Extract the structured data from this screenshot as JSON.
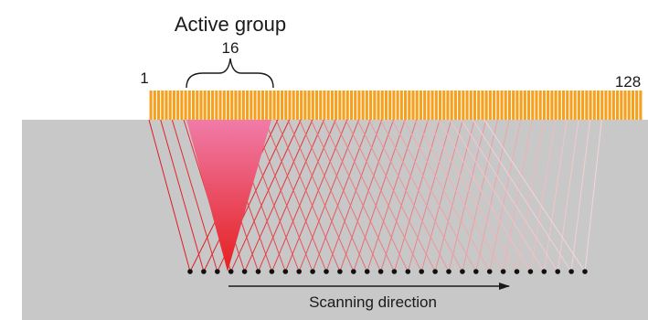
{
  "diagram": {
    "active_group_label": "Active group",
    "group_size_label": "16",
    "first_element_label": "1",
    "last_element_label": "128",
    "scan_direction_label": "Scanning direction",
    "element_count": 128,
    "group_size": 16,
    "focal_point_count": 30,
    "colors": {
      "specimen": "#c8c8c8",
      "element": "#f7a01e",
      "element_gap": "#ffffff",
      "beam_near": "#e11b22",
      "beam_far": "#f6d6da",
      "active_beam_top": "#f07ca8",
      "active_beam_bottom": "#e51f1f",
      "focal_point": "#111111",
      "text": "#1a1a1a"
    }
  }
}
